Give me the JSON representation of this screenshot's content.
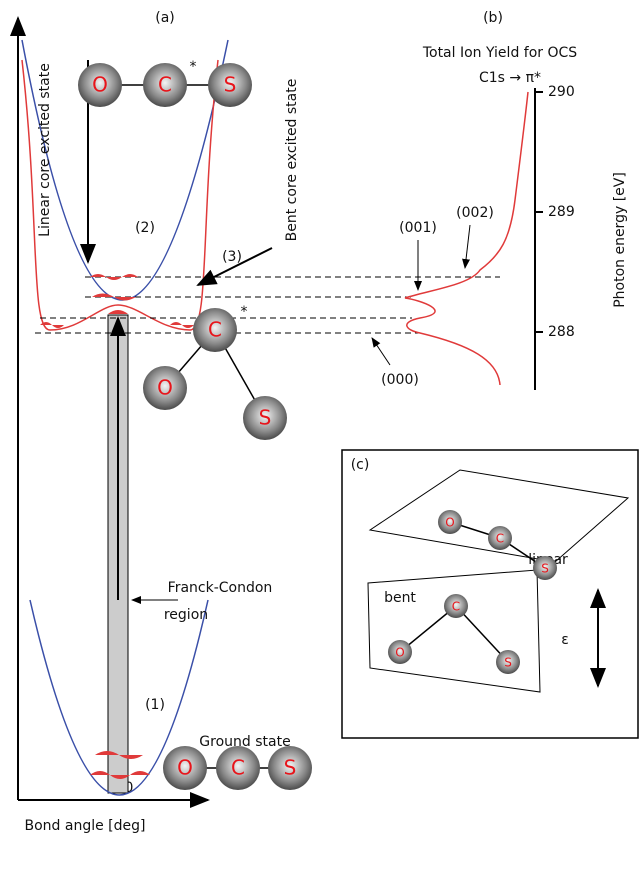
{
  "panel_labels": [
    "(a)",
    "(b)",
    "(c)"
  ],
  "axis_a": {
    "tick": 180,
    "label": "Bond angle [deg]"
  },
  "spectrum": {
    "title": "Total Ion Yield for OCS",
    "transition": "C1s → π*",
    "axis_label": "Photon energy [eV]",
    "ticks": [
      288,
      289,
      290
    ],
    "peaks": [
      "(000)",
      "(001)",
      "(002)"
    ]
  },
  "labels": {
    "linear_state": "Linear core excited state",
    "bent_state": "Bent core excited state",
    "n2": "(2)",
    "n3": "(3)",
    "n1": "(1)",
    "franck_condon": "Franck-Condon",
    "region": "region",
    "ground": "Ground state"
  },
  "molecules": [
    {
      "atoms": [
        "O",
        "C",
        "S"
      ],
      "star": "*"
    },
    {
      "atoms": [
        "O",
        "C",
        "S"
      ],
      "star": "*"
    },
    {
      "atoms": [
        "O",
        "C",
        "S"
      ]
    },
    {
      "atoms": [
        "O",
        "C",
        "S"
      ]
    },
    {
      "atoms": [
        "O",
        "C",
        "S"
      ]
    }
  ],
  "panel_c": {
    "linear": "linear",
    "bent": "bent",
    "epsilon": "ε"
  }
}
